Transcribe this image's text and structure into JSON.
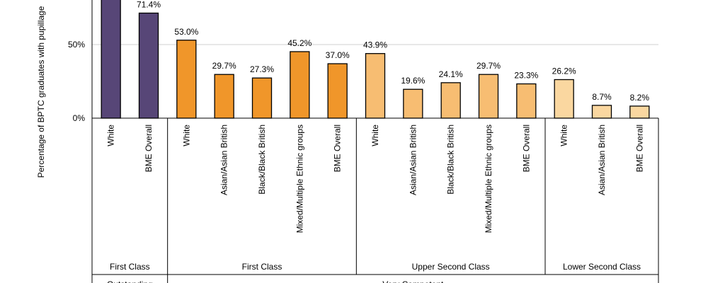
{
  "chart_data": {
    "type": "bar",
    "ylabel": "Percentage of BPTC graduates with pupillage",
    "yticks": [
      "0%",
      "50%"
    ],
    "ylim": [
      0,
      100
    ],
    "grid": true,
    "categories": [
      "White",
      "BME Overall",
      "White",
      "Asian/Asian British",
      "Black/Black British",
      "Mixed/Multiple Ethnic groups",
      "BME Overall",
      "White",
      "Asian/Asian British",
      "Black/Black British",
      "Mixed/Multiple Ethnic groups",
      "BME Overall",
      "White",
      "Asian/Asian British",
      "BME Overall"
    ],
    "values": [
      84.0,
      71.4,
      53.0,
      29.7,
      27.3,
      45.2,
      37.0,
      43.9,
      19.6,
      24.1,
      29.7,
      23.3,
      26.2,
      8.7,
      8.2
    ],
    "value_labels": [
      "",
      "71.4%",
      "53.0%",
      "29.7%",
      "27.3%",
      "45.2%",
      "37.0%",
      "43.9%",
      "19.6%",
      "24.1%",
      "29.7%",
      "23.3%",
      "26.2%",
      "8.7%",
      "8.2%"
    ],
    "bar_colors": [
      "#574677",
      "#574677",
      "#f0962a",
      "#f0962a",
      "#f0962a",
      "#f0962a",
      "#f0962a",
      "#f7bd72",
      "#f7bd72",
      "#f7bd72",
      "#f7bd72",
      "#f7bd72",
      "#fad7a0",
      "#fad7a0",
      "#fad7a0"
    ],
    "degree_groups": [
      {
        "label": "First Class",
        "count": 2
      },
      {
        "label": "First Class",
        "count": 5
      },
      {
        "label": "Upper Second Class",
        "count": 5
      },
      {
        "label": "Lower Second Class",
        "count": 3
      }
    ],
    "assessment_groups": [
      {
        "label": "Outstanding",
        "count": 2
      },
      {
        "label": "Very Competent",
        "count": 13
      }
    ]
  }
}
